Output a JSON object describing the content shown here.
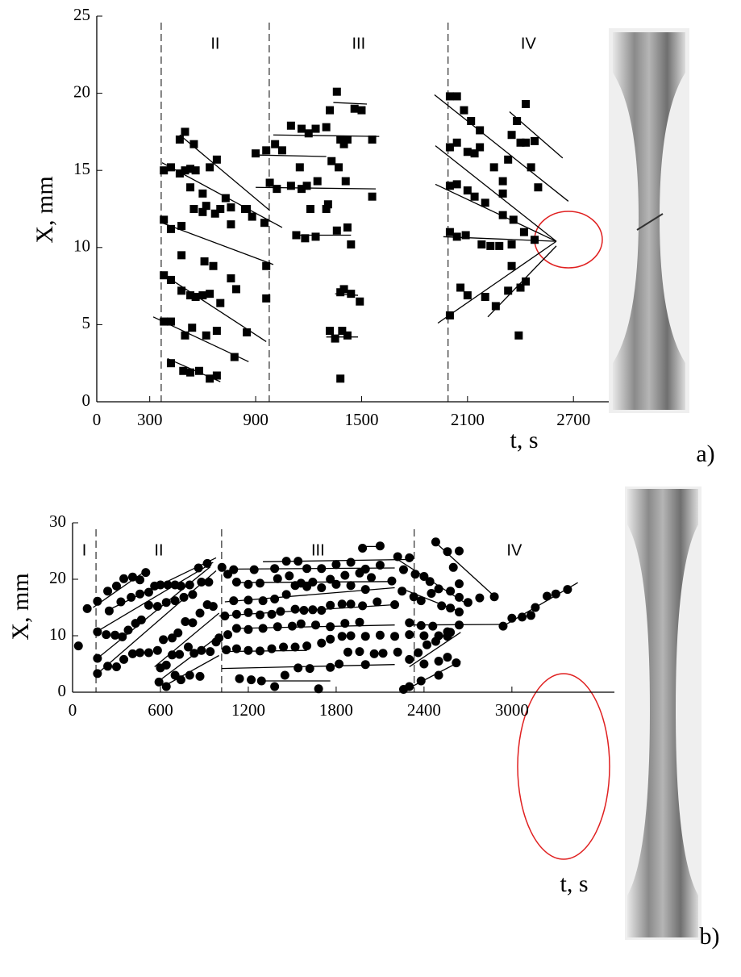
{
  "chart_data": [
    {
      "type": "scatter",
      "marker": "square",
      "color": "#000000",
      "panel": "a)",
      "x_label": "t, s",
      "y_label": "X, mm",
      "xlim": [
        0,
        2900
      ],
      "ylim": [
        0,
        25
      ],
      "xticks": [
        0,
        300,
        900,
        1500,
        2100,
        2700
      ],
      "yticks": [
        0,
        5,
        10,
        15,
        20,
        25
      ],
      "dividers": [
        365,
        977,
        1990
      ],
      "region_labels": [
        "II",
        "III",
        "IV"
      ],
      "x": [
        380,
        420,
        470,
        500,
        530,
        560,
        640,
        680,
        470,
        500,
        550,
        380,
        420,
        480,
        550,
        600,
        620,
        670,
        700,
        760,
        840,
        880,
        950,
        380,
        420,
        480,
        530,
        560,
        600,
        640,
        700,
        610,
        660,
        760,
        790,
        960,
        480,
        380,
        420,
        500,
        540,
        620,
        680,
        850,
        780,
        420,
        490,
        530,
        580,
        640,
        680,
        960,
        530,
        600,
        730,
        760,
        850,
        900,
        960,
        1010,
        1050,
        1100,
        1160,
        1200,
        1240,
        1300,
        1320,
        1360,
        1380,
        1420,
        1460,
        1500,
        1400,
        1560,
        980,
        1020,
        1100,
        1160,
        1190,
        1250,
        1330,
        1370,
        1410,
        1560,
        1150,
        1210,
        1300,
        1130,
        1180,
        1240,
        1310,
        1360,
        1420,
        1440,
        1380,
        1400,
        1440,
        1490,
        1350,
        1390,
        1420,
        1380,
        1320,
        2000,
        2040,
        2080,
        2120,
        2170,
        2000,
        2040,
        2100,
        2140,
        2170,
        2250,
        2300,
        2000,
        2040,
        2100,
        2140,
        2200,
        2300,
        2360,
        2000,
        2040,
        2090,
        2180,
        2230,
        2280,
        2350,
        2420,
        2480,
        2000,
        2060,
        2100,
        2200,
        2260,
        2330,
        2400,
        2430,
        2390,
        2350,
        2300,
        2330,
        2350,
        2380,
        2430,
        2400,
        2460,
        2500,
        2480,
        2430
      ],
      "values": [
        15,
        15.2,
        14.8,
        15,
        15.1,
        15,
        15.2,
        15.7,
        17,
        17.5,
        16.7,
        11.8,
        11.2,
        11.4,
        12.5,
        12.3,
        12.7,
        12.2,
        12.5,
        11.5,
        12.5,
        12,
        11.6,
        8.2,
        7.9,
        7.2,
        6.9,
        6.8,
        6.9,
        7,
        6.4,
        9.1,
        8.8,
        8,
        7.3,
        6.7,
        9.5,
        5.2,
        5.2,
        4.3,
        4.8,
        4.3,
        4.6,
        4.5,
        2.9,
        2.5,
        2,
        1.9,
        2,
        1.5,
        1.7,
        8.8,
        13.9,
        13.5,
        13.2,
        12.6,
        12.5,
        16.1,
        16.3,
        16.7,
        16.3,
        17.9,
        17.7,
        17.4,
        17.7,
        17.8,
        18.9,
        20.1,
        17,
        17,
        19,
        18.9,
        16.7,
        17,
        14.2,
        13.8,
        14,
        13.8,
        14,
        14.3,
        15.6,
        15.2,
        14.3,
        13.3,
        15.2,
        12.5,
        12.5,
        10.8,
        10.6,
        10.7,
        12.8,
        11.1,
        11.3,
        10.2,
        7.1,
        7.3,
        7,
        6.5,
        4.1,
        4.6,
        4.3,
        1.5,
        4.6,
        19.8,
        19.8,
        18.9,
        18.2,
        17.6,
        16.5,
        16.8,
        16.2,
        16.1,
        16.5,
        15.2,
        13.5,
        14,
        14.1,
        13.7,
        13.3,
        12.9,
        12.1,
        11.8,
        11,
        10.7,
        10.8,
        10.2,
        10.1,
        10.1,
        10.2,
        11,
        10.5,
        5.6,
        7.4,
        6.9,
        6.8,
        6.2,
        7.2,
        7.4,
        7.8,
        4.3,
        8.8,
        14.3,
        15.7,
        17.3,
        18.2,
        19.3,
        16.8,
        15.2,
        13.9,
        16.9,
        16.8
      ],
      "lines": [
        {
          "x": [
            370,
            1050
          ],
          "y": [
            15.5,
            11.3
          ]
        },
        {
          "x": [
            470,
            980
          ],
          "y": [
            17.3,
            12.4
          ]
        },
        {
          "x": [
            370,
            1000
          ],
          "y": [
            11.6,
            8.9
          ]
        },
        {
          "x": [
            370,
            960
          ],
          "y": [
            8.3,
            3.9
          ]
        },
        {
          "x": [
            320,
            860
          ],
          "y": [
            5.5,
            2.6
          ]
        },
        {
          "x": [
            400,
            700
          ],
          "y": [
            2.8,
            1.3
          ]
        },
        {
          "x": [
            890,
            1300
          ],
          "y": [
            16,
            15.9
          ]
        },
        {
          "x": [
            1000,
            1600
          ],
          "y": [
            17.3,
            17.2
          ]
        },
        {
          "x": [
            900,
            1580
          ],
          "y": [
            13.9,
            13.8
          ]
        },
        {
          "x": [
            1340,
            1530
          ],
          "y": [
            19.4,
            19.3
          ]
        },
        {
          "x": [
            1150,
            1440
          ],
          "y": [
            10.8,
            10.8
          ]
        },
        {
          "x": [
            1350,
            1480
          ],
          "y": [
            7,
            6.9
          ]
        },
        {
          "x": [
            1300,
            1480
          ],
          "y": [
            4.2,
            4.2
          ]
        },
        {
          "x": [
            1913,
            2671
          ],
          "y": [
            19.9,
            13
          ]
        },
        {
          "x": [
            1918,
            2603
          ],
          "y": [
            16.6,
            10.4
          ]
        },
        {
          "x": [
            1918,
            2603
          ],
          "y": [
            14.1,
            10.4
          ]
        },
        {
          "x": [
            1963,
            2603
          ],
          "y": [
            10.7,
            10.4
          ]
        },
        {
          "x": [
            1932,
            2603
          ],
          "y": [
            5.1,
            10.4
          ]
        },
        {
          "x": [
            2215,
            2603
          ],
          "y": [
            5.5,
            10.1
          ]
        },
        {
          "x": [
            2338,
            2639
          ],
          "y": [
            18.8,
            15.8
          ]
        }
      ]
    },
    {
      "type": "scatter",
      "marker": "circle",
      "color": "#000000",
      "panel": "b)",
      "x_label": "t, s",
      "y_label": "X, mm",
      "xlim": [
        0,
        3700
      ],
      "ylim": [
        0,
        30
      ],
      "xticks": [
        0,
        600,
        1200,
        1800,
        2400,
        3000
      ],
      "yticks": [
        0,
        10,
        20,
        30
      ],
      "dividers": [
        160,
        1018,
        2333
      ],
      "region_labels": [
        "I",
        "II",
        "III",
        "IV"
      ],
      "x": [
        40,
        100,
        170,
        240,
        300,
        350,
        410,
        460,
        500,
        250,
        330,
        400,
        460,
        520,
        560,
        600,
        650,
        700,
        740,
        800,
        860,
        920,
        170,
        230,
        290,
        340,
        380,
        430,
        470,
        520,
        580,
        640,
        700,
        760,
        820,
        880,
        930,
        170,
        240,
        300,
        350,
        410,
        460,
        520,
        580,
        620,
        680,
        720,
        770,
        820,
        870,
        920,
        960,
        170,
        590,
        640,
        700,
        740,
        800,
        870,
        600,
        640,
        680,
        730,
        790,
        830,
        880,
        940,
        980,
        1020,
        1100,
        1240,
        1380,
        1460,
        1540,
        1600,
        1700,
        1800,
        1900,
        2000,
        2100,
        1980,
        2100,
        1060,
        1120,
        1200,
        1280,
        1400,
        1480,
        1560,
        1640,
        1760,
        1860,
        1960,
        2040,
        2180,
        1100,
        1200,
        1300,
        1380,
        1460,
        1520,
        1600,
        1700,
        1800,
        1900,
        2000,
        1040,
        1120,
        1200,
        1280,
        1360,
        1420,
        1520,
        1580,
        1640,
        1700,
        1760,
        1840,
        1900,
        1980,
        2080,
        2200,
        1000,
        1060,
        1120,
        1200,
        1300,
        1400,
        1500,
        1560,
        1660,
        1760,
        1860,
        1960,
        1050,
        1120,
        1200,
        1280,
        1360,
        1440,
        1520,
        1600,
        1700,
        1760,
        1840,
        1900,
        2000,
        2100,
        2200,
        1140,
        1220,
        1290,
        1380,
        1450,
        1540,
        1620,
        1680,
        1760,
        1820,
        1880,
        1960,
        2060,
        2120,
        2220,
        2000,
        2220,
        2300,
        2260,
        2340,
        2400,
        2440,
        2500,
        2580,
        2640,
        2700,
        2780,
        2880,
        2250,
        2330,
        2380,
        2450,
        2520,
        2580,
        2640,
        2480,
        2560,
        2640,
        2600,
        2640,
        2300,
        2380,
        2460,
        2560,
        2640,
        2300,
        2400,
        2500,
        2560,
        2260,
        2300,
        2380,
        2300,
        2360,
        2420,
        2480,
        2580,
        2400,
        2500,
        2560,
        2500,
        2620,
        2940,
        3000,
        3070,
        3130,
        3160,
        3240,
        3300,
        3380
      ],
      "values": [
        8.2,
        14.8,
        16.1,
        17.9,
        18.8,
        20.1,
        20.4,
        19.9,
        21.2,
        14.4,
        16,
        16.8,
        17.4,
        17.7,
        18.8,
        19,
        19,
        19,
        18.8,
        19,
        22,
        22.8,
        10.7,
        10.2,
        10.1,
        9.8,
        11,
        12.2,
        12.8,
        15.4,
        15.2,
        15.9,
        16.2,
        16.8,
        17.3,
        19.5,
        19.5,
        6,
        4.6,
        4.5,
        5.8,
        6.8,
        7,
        7,
        7.4,
        9.3,
        9.6,
        10.5,
        12.5,
        12.3,
        14,
        15.5,
        15.2,
        3.3,
        1.8,
        1,
        3,
        2.2,
        3,
        2.8,
        4.3,
        4.8,
        6.6,
        6.7,
        8,
        6.9,
        7.4,
        7.2,
        8.9,
        22.1,
        21.7,
        21.7,
        21.9,
        23.2,
        23.2,
        21.9,
        21.9,
        22.6,
        23,
        21.8,
        22.5,
        25.5,
        25.9,
        20.9,
        19.5,
        19.1,
        19.3,
        20.1,
        20.6,
        19.3,
        19.5,
        20,
        20.7,
        21.1,
        20.3,
        19.7,
        16.2,
        16.3,
        16.2,
        16.5,
        17.3,
        18.9,
        18.7,
        18.5,
        19.1,
        18.9,
        18.2,
        13.5,
        13.8,
        14.1,
        13.7,
        13.8,
        14.3,
        14.7,
        14.5,
        14.6,
        14.5,
        15.4,
        15.6,
        15.6,
        15.3,
        16,
        15.5,
        9.6,
        10.2,
        11.3,
        11.1,
        11.3,
        11.6,
        11.7,
        12.1,
        11.9,
        11.6,
        12.2,
        12.4,
        7.5,
        7.7,
        7.4,
        7.3,
        7.7,
        8,
        8,
        8.2,
        8.7,
        9.4,
        9.9,
        10,
        9.9,
        10.1,
        9.9,
        2.4,
        2.2,
        2,
        1,
        3,
        4.3,
        4.2,
        0.6,
        4.4,
        5,
        7.1,
        7.2,
        6.8,
        6.9,
        7.1,
        4.9,
        24,
        23.8,
        21.7,
        20.9,
        20.5,
        19.6,
        18.3,
        17.9,
        16.8,
        15.9,
        16.7,
        16.9,
        17.9,
        16.9,
        16.2,
        17.5,
        15.3,
        14.9,
        14.2,
        26.6,
        24.9,
        25,
        22.1,
        19.2,
        12.3,
        11.8,
        11.7,
        10.7,
        11.9,
        10.2,
        10,
        10,
        9.9,
        0.5,
        1,
        2,
        5.8,
        7,
        8.4,
        9,
        10.6,
        5,
        5.5,
        6.2,
        3,
        5.2,
        11.7,
        13.1,
        13.3,
        13.6,
        15,
        17,
        17.4,
        18.2
      ],
      "lines": [
        {
          "x": [
            140,
            500
          ],
          "y": [
            15,
            21.5
          ]
        },
        {
          "x": [
            240,
            980
          ],
          "y": [
            14.5,
            23.8
          ]
        },
        {
          "x": [
            170,
            960
          ],
          "y": [
            10.8,
            23
          ]
        },
        {
          "x": [
            170,
            940
          ],
          "y": [
            6,
            22.2
          ]
        },
        {
          "x": [
            170,
            980
          ],
          "y": [
            3.3,
            21.5
          ]
        },
        {
          "x": [
            560,
            1000
          ],
          "y": [
            4.5,
            14
          ]
        },
        {
          "x": [
            590,
            1000
          ],
          "y": [
            2,
            10
          ]
        },
        {
          "x": [
            620,
            1000
          ],
          "y": [
            1,
            6.5
          ]
        },
        {
          "x": [
            1300,
            2280
          ],
          "y": [
            23.1,
            23.5
          ]
        },
        {
          "x": [
            1100,
            2200
          ],
          "y": [
            21.8,
            22
          ]
        },
        {
          "x": [
            1100,
            2200
          ],
          "y": [
            19.4,
            19.6
          ]
        },
        {
          "x": [
            1040,
            2200
          ],
          "y": [
            16,
            18.5
          ]
        },
        {
          "x": [
            1000,
            2200
          ],
          "y": [
            13.5,
            15.5
          ]
        },
        {
          "x": [
            1120,
            2200
          ],
          "y": [
            11.3,
            11.9
          ]
        },
        {
          "x": [
            1020,
            1600
          ],
          "y": [
            7.2,
            7.4
          ]
        },
        {
          "x": [
            1020,
            2200
          ],
          "y": [
            4.2,
            4.9
          ]
        },
        {
          "x": [
            1280,
            1760
          ],
          "y": [
            2,
            2
          ]
        },
        {
          "x": [
            1980,
            2120
          ],
          "y": [
            25.8,
            25.8
          ]
        },
        {
          "x": [
            2220,
            2700
          ],
          "y": [
            23.5,
            15.5
          ]
        },
        {
          "x": [
            2280,
            2650
          ],
          "y": [
            18,
            14.2
          ]
        },
        {
          "x": [
            2500,
            2880
          ],
          "y": [
            26,
            17
          ]
        },
        {
          "x": [
            2280,
            2940
          ],
          "y": [
            11.9,
            12
          ]
        },
        {
          "x": [
            2300,
            2650
          ],
          "y": [
            4.5,
            10.6
          ]
        },
        {
          "x": [
            2280,
            2650
          ],
          "y": [
            0.5,
            5.5
          ]
        },
        {
          "x": [
            2940,
            3450
          ],
          "y": [
            11.7,
            19.4
          ]
        }
      ]
    }
  ]
}
